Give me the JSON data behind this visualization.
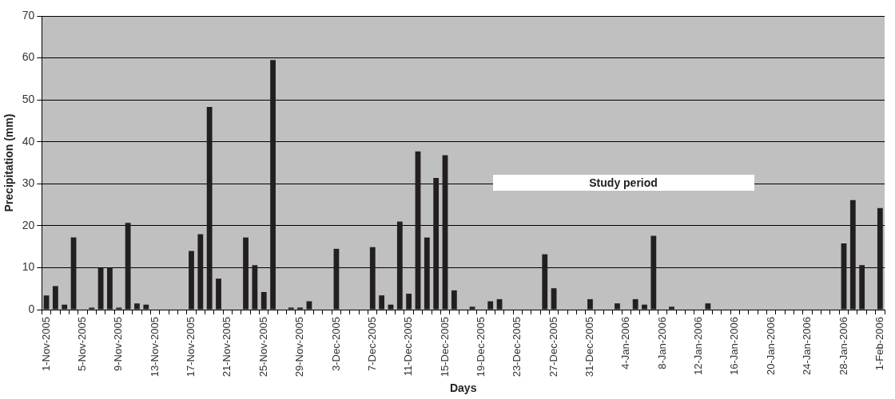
{
  "chart_data": {
    "type": "bar",
    "xlabel": "Days",
    "ylabel": "Precipitation (mm)",
    "categories": [
      "1-Nov-2005",
      null,
      null,
      null,
      "5-Nov-2005",
      null,
      null,
      null,
      "9-Nov-2005",
      null,
      null,
      null,
      "13-Nov-2005",
      null,
      null,
      null,
      "17-Nov-2005",
      null,
      null,
      null,
      "21-Nov-2005",
      null,
      null,
      null,
      "25-Nov-2005",
      null,
      null,
      null,
      "29-Nov-2005",
      null,
      null,
      null,
      "3-Dec-2005",
      null,
      null,
      null,
      "7-Dec-2005",
      null,
      null,
      null,
      "11-Dec-2005",
      null,
      null,
      null,
      "15-Dec-2005",
      null,
      null,
      null,
      "19-Dec-2005",
      null,
      null,
      null,
      "23-Dec-2005",
      null,
      null,
      null,
      "27-Dec-2005",
      null,
      null,
      null,
      "31-Dec-2005",
      null,
      null,
      null,
      "4-Jan-2006",
      null,
      null,
      null,
      "8-Jan-2006",
      null,
      null,
      null,
      "12-Jan-2006",
      null,
      null,
      null,
      "16-Jan-2006",
      null,
      null,
      null,
      "20-Jan-2006",
      null,
      null,
      null,
      "24-Jan-2006",
      null,
      null,
      null,
      "28-Jan-2006",
      null,
      null,
      null,
      "1-Feb-2006"
    ],
    "values": [
      3.4,
      5.6,
      1.2,
      17.2,
      0,
      0.5,
      10,
      10,
      0.5,
      20.7,
      1.5,
      1.2,
      0,
      0,
      0,
      0,
      14,
      18,
      48.3,
      7.4,
      0,
      0,
      17.2,
      10.6,
      4.2,
      59.5,
      0,
      0.5,
      0.5,
      2,
      0,
      0,
      14.5,
      0,
      0,
      0,
      14.9,
      3.4,
      1.2,
      21,
      3.8,
      37.7,
      17.2,
      31.4,
      36.8,
      4.6,
      0,
      0.7,
      0,
      2,
      2.5,
      0,
      0,
      0,
      0,
      13.2,
      5.1,
      0,
      0,
      0,
      2.5,
      0,
      0,
      1.5,
      0,
      2.5,
      1.2,
      17.6,
      0,
      0.7,
      0,
      0,
      0,
      1.5,
      0,
      0,
      0,
      0,
      0,
      0,
      0,
      0,
      0,
      0,
      0,
      0,
      0,
      0,
      15.8,
      26.1,
      10.6,
      0,
      24.2
    ],
    "color": "#231f20",
    "ylim": [
      0,
      70
    ],
    "yticks": [
      0,
      10,
      20,
      30,
      40,
      50,
      60,
      70
    ],
    "grid": "y",
    "annotations": [
      "Study period"
    ]
  }
}
